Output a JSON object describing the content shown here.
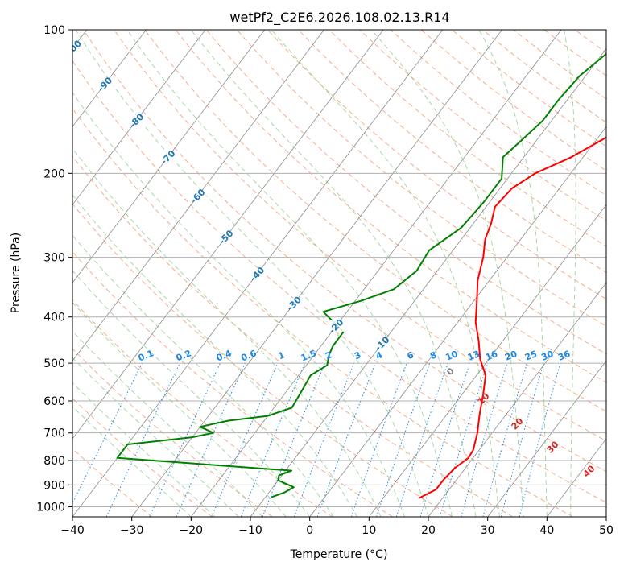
{
  "chart_data": {
    "type": "line",
    "title": "wetPf2_C2E6.2026.108.02.13.R14",
    "xlabel": "Temperature (°C)",
    "ylabel": "Pressure (hPa)",
    "xlim": [
      -40,
      50
    ],
    "ylim": [
      1050,
      100
    ],
    "y_scale": "log",
    "grid": true,
    "x_ticks": [
      -40,
      -30,
      -20,
      -10,
      0,
      10,
      20,
      30,
      40,
      50
    ],
    "y_ticks": [
      100,
      200,
      300,
      400,
      500,
      600,
      700,
      800,
      900,
      1000
    ],
    "temperature": {
      "color": "#ff0000",
      "points": [
        [
          16.0,
          960
        ],
        [
          17.8,
          920
        ],
        [
          17.8,
          880
        ],
        [
          18.2,
          830
        ],
        [
          19.2,
          790
        ],
        [
          19.0,
          760
        ],
        [
          17.5,
          700
        ],
        [
          15.5,
          640
        ],
        [
          13.5,
          580
        ],
        [
          11.5,
          530
        ],
        [
          8.5,
          490
        ],
        [
          6.0,
          450
        ],
        [
          3.0,
          410
        ],
        [
          0.5,
          370
        ],
        [
          -2.0,
          335
        ],
        [
          -4.0,
          300
        ],
        [
          -6.0,
          275
        ],
        [
          -7.0,
          255
        ],
        [
          -8.5,
          235
        ],
        [
          -8.0,
          215
        ],
        [
          -6.0,
          200
        ],
        [
          -2.0,
          185
        ],
        [
          1.0,
          170
        ],
        [
          4.0,
          155
        ],
        [
          5.5,
          140
        ],
        [
          7.0,
          128
        ],
        [
          8.5,
          115
        ],
        [
          10.5,
          100
        ]
      ]
    },
    "dewpoint": {
      "color": "#008000",
      "points": [
        [
          -9.0,
          955
        ],
        [
          -7.5,
          935
        ],
        [
          -6.5,
          910
        ],
        [
          -10.0,
          880
        ],
        [
          -10.5,
          860
        ],
        [
          -9.0,
          840
        ],
        [
          -40.0,
          790
        ],
        [
          -40.0,
          740
        ],
        [
          -30.0,
          715
        ],
        [
          -27.0,
          700
        ],
        [
          -30.0,
          680
        ],
        [
          -26.0,
          660
        ],
        [
          -20.0,
          645
        ],
        [
          -17.0,
          620
        ],
        [
          -17.5,
          570
        ],
        [
          -18.0,
          530
        ],
        [
          -16.5,
          505
        ],
        [
          -17.5,
          480
        ],
        [
          -18.0,
          460
        ],
        [
          -18.0,
          430
        ],
        [
          -24.0,
          390
        ],
        [
          -19.0,
          370
        ],
        [
          -15.0,
          350
        ],
        [
          -13.5,
          320
        ],
        [
          -14.0,
          290
        ],
        [
          -11.5,
          260
        ],
        [
          -11.0,
          230
        ],
        [
          -11.0,
          205
        ],
        [
          -13.5,
          185
        ],
        [
          -12.5,
          170
        ],
        [
          -11.5,
          155
        ],
        [
          -11.5,
          140
        ],
        [
          -11.0,
          125
        ],
        [
          -9.0,
          110
        ],
        [
          -6.0,
          100
        ]
      ]
    },
    "isotherm_labels": [
      "-100",
      "-90",
      "-80",
      "-70",
      "-60",
      "-50",
      "-40",
      "-30",
      "-20",
      "-10"
    ],
    "mixing_ratio_labels": [
      "0.1",
      "0.2",
      "0.4",
      "0.6",
      "1",
      "1.5",
      "2",
      "3",
      "4",
      "6",
      "8",
      "10",
      "13",
      "16",
      "20",
      "25",
      "30",
      "36"
    ],
    "moist_adiabat_labels": [
      "0",
      "10",
      "20",
      "30",
      "40"
    ],
    "colors": {
      "isotherm": "#8c8c8c",
      "isotherm_label": "#1f77b4",
      "dry_adiabat": "#f4a582",
      "moist_adiabat": "#9fd49f",
      "mixing_ratio": "#1e88e5",
      "mixing_label": "#1e88e5",
      "moist_label": "#d62728",
      "zero_label": "#808080",
      "grid": "#b0b0b0"
    }
  }
}
